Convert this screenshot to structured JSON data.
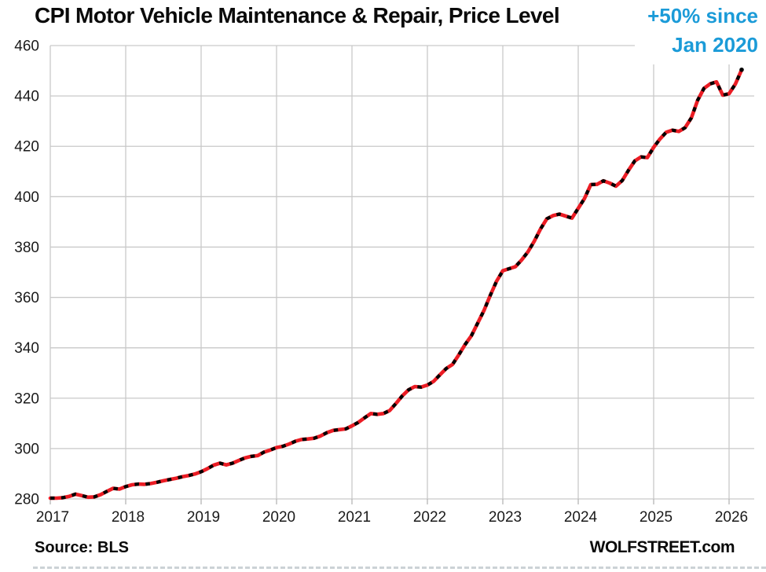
{
  "header": {
    "title": "CPI Motor Vehicle Maintenance & Repair, Price Level"
  },
  "annotation": {
    "line1": "+50% since",
    "line2": "Jan 2020",
    "color": "#1b9bd8"
  },
  "footer": {
    "source": "Source: BLS",
    "brand": "WOLFSTREET.com"
  },
  "chart_data": {
    "type": "line",
    "title": "CPI Motor Vehicle Maintenance & Repair, Price Level",
    "xlabel": "",
    "ylabel": "",
    "ylim": [
      280,
      460
    ],
    "xlim": [
      2017,
      2026.33
    ],
    "y_ticks": [
      280,
      300,
      320,
      340,
      360,
      380,
      400,
      420,
      440,
      460
    ],
    "x_ticks": [
      2017,
      2018,
      2019,
      2020,
      2021,
      2022,
      2023,
      2024,
      2025,
      2026
    ],
    "grid": true,
    "gridline_color": "#c9c9c9",
    "tick_label_color": "#1a1a1a",
    "legend": "none",
    "series": [
      {
        "name": "CPI Motor Vehicle Maintenance and Repair, price level, monthly",
        "color": "#eb1c24",
        "marker_color": "#000000",
        "x_start": 2017.0,
        "x_step": 0.0833333,
        "values": [
          280.3,
          280.3,
          280.5,
          281.0,
          281.9,
          281.3,
          280.7,
          280.8,
          281.7,
          283.0,
          284.2,
          283.9,
          284.9,
          285.6,
          285.9,
          285.8,
          286.1,
          286.6,
          287.2,
          287.7,
          288.2,
          288.8,
          289.3,
          289.9,
          290.8,
          292.0,
          293.4,
          294.2,
          293.5,
          294.2,
          295.3,
          296.3,
          296.9,
          297.2,
          298.6,
          299.4,
          300.4,
          300.9,
          301.8,
          302.9,
          303.6,
          303.8,
          304.1,
          305.0,
          306.3,
          307.2,
          307.5,
          307.8,
          309.0,
          310.4,
          312.2,
          313.9,
          313.6,
          313.9,
          315.1,
          317.9,
          320.9,
          323.3,
          324.6,
          324.4,
          325.2,
          326.7,
          329.3,
          331.8,
          333.4,
          337.2,
          341.3,
          344.8,
          349.8,
          354.8,
          360.8,
          366.4,
          370.6,
          371.4,
          372.2,
          374.9,
          378.1,
          382.3,
          387.2,
          391.2,
          392.5,
          393.1,
          392.3,
          391.5,
          395.4,
          399.3,
          404.8,
          404.9,
          406.3,
          405.4,
          404.2,
          406.4,
          410.5,
          414.2,
          415.8,
          415.5,
          419.6,
          422.9,
          425.6,
          426.4,
          425.9,
          427.4,
          431.3,
          438.3,
          443.0,
          444.8,
          445.6,
          440.3,
          440.9,
          444.7,
          450.4
        ]
      }
    ]
  }
}
